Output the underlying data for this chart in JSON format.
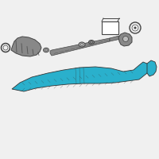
{
  "bg_color": "#f0f0f0",
  "main_color": "#2ab0cc",
  "gray_color": "#888888",
  "dark_gray": "#444444",
  "light_gray": "#bbbbbb",
  "white": "#ffffff",
  "outline_color": "#333333",
  "fig_size": [
    2.0,
    2.0
  ],
  "dpi": 100
}
